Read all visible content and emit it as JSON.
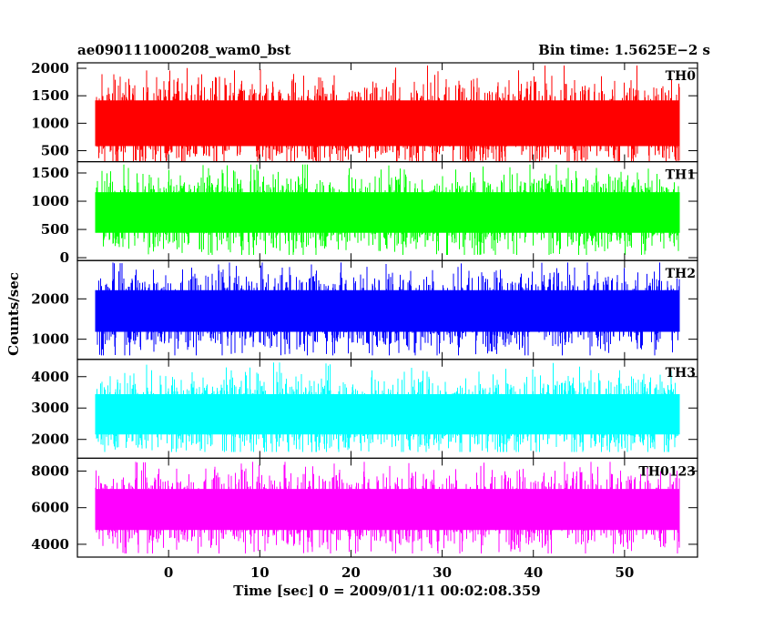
{
  "chart_data": {
    "type": "line",
    "title": "ae090111000208_wam0_bst",
    "subtitle": "Bin time: 1.5625E−2 s",
    "xlabel": "Time [sec] 0 = 2009/01/11 00:02:08.359",
    "ylabel": "Counts/sec",
    "xlim": [
      -10,
      58
    ],
    "x_start": -8,
    "x_end": 56,
    "x_ticks": [
      0,
      10,
      20,
      30,
      40,
      50
    ],
    "grid": false,
    "panels": [
      {
        "name": "TH0",
        "color": "#ff0000",
        "ylim": [
          300,
          2100
        ],
        "yticks": [
          500,
          1000,
          1500,
          2000
        ],
        "mean": 1000,
        "min_level": 200,
        "max_level": 2050
      },
      {
        "name": "TH1",
        "color": "#00ff00",
        "ylim": [
          -50,
          1700
        ],
        "yticks": [
          0,
          500,
          1000,
          1500
        ],
        "mean": 800,
        "min_level": 50,
        "max_level": 1650
      },
      {
        "name": "TH2",
        "color": "#0000ff",
        "ylim": [
          500,
          2950
        ],
        "yticks": [
          1000,
          2000
        ],
        "mean": 1700,
        "min_level": 600,
        "max_level": 2900
      },
      {
        "name": "TH3",
        "color": "#00ffff",
        "ylim": [
          1400,
          4550
        ],
        "yticks": [
          2000,
          3000,
          4000
        ],
        "mean": 2800,
        "min_level": 1600,
        "max_level": 4450
      },
      {
        "name": "TH0123",
        "color": "#ff00ff",
        "ylim": [
          3300,
          8700
        ],
        "yticks": [
          4000,
          6000,
          8000
        ],
        "mean": 5900,
        "min_level": 3500,
        "max_level": 8500
      }
    ]
  }
}
